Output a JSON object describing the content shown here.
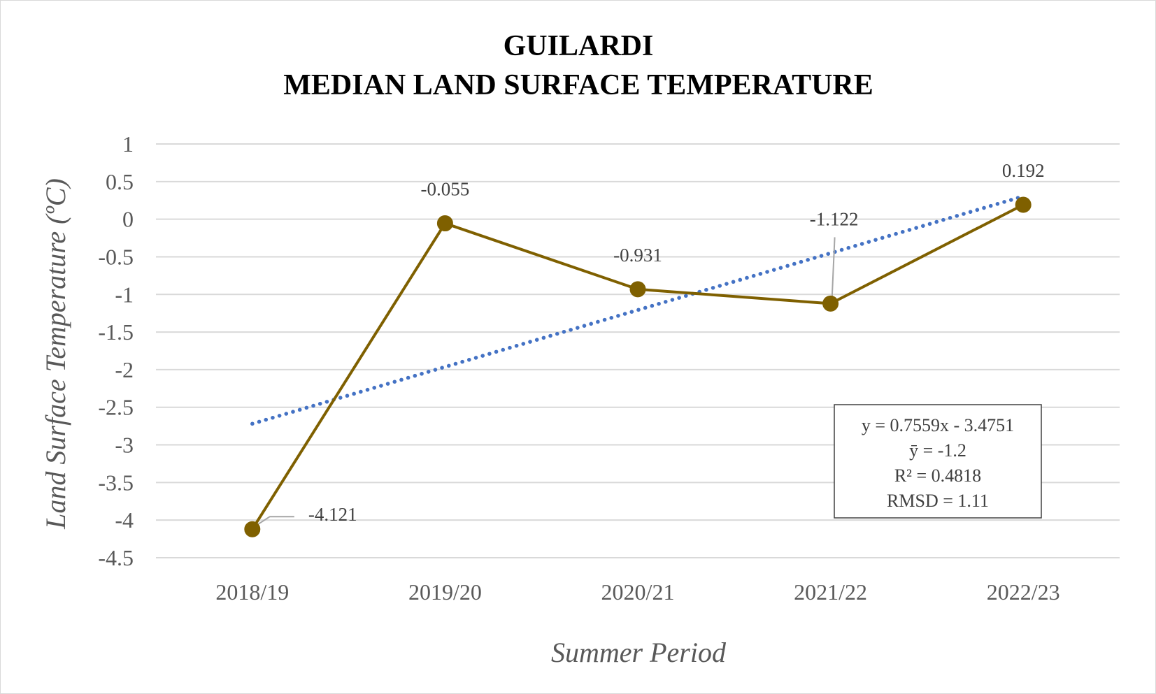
{
  "chart_data": {
    "type": "line",
    "title_lines": [
      "GUILARDI",
      "MEDIAN LAND SURFACE TEMPERATURE"
    ],
    "xlabel": "Summer Period",
    "ylabel": "Land Surface Temperature (ºC)",
    "categories": [
      "2018/19",
      "2019/20",
      "2020/21",
      "2021/22",
      "2022/23"
    ],
    "series": [
      {
        "values": [
          -4.121,
          -0.055,
          -0.931,
          -1.122,
          0.192
        ],
        "data_labels": [
          "-4.121",
          "-0.055",
          "-0.931",
          "-1.122",
          "0.192"
        ],
        "color": "#7f6000"
      }
    ],
    "trendline": {
      "type": "linear",
      "slope": 0.7559,
      "intercept": -3.4751,
      "color": "#4472c4",
      "style": "dotted"
    },
    "equation_box": [
      "y = 0.7559x - 3.4751",
      "ȳ = -1.2",
      "R² = 0.4818",
      "RMSD = 1.11"
    ],
    "ylim": [
      -4.5,
      1
    ],
    "ytick_step": 0.5,
    "grid": true,
    "legend": "none"
  }
}
